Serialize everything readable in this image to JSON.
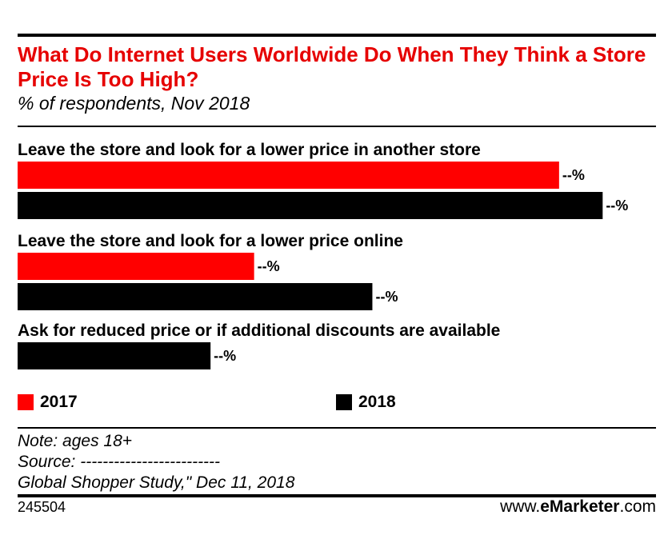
{
  "chart_data": {
    "type": "bar",
    "orientation": "horizontal",
    "title": "What Do Internet Users Worldwide Do When They Think a Store Price Is Too High?",
    "subtitle": "% of respondents, Nov 2018",
    "categories": [
      "Leave the store and look for a lower price in another store",
      "Leave the store and look for a lower price online",
      "Ask for reduced price or if additional discounts are available"
    ],
    "series": [
      {
        "name": "2017",
        "color": "#ff0000",
        "values": [
          87,
          38,
          null
        ],
        "labels": [
          "--%",
          "--%",
          ""
        ]
      },
      {
        "name": "2018",
        "color": "#000000",
        "values": [
          94,
          57,
          31
        ],
        "labels": [
          "--%",
          "--%",
          "--%"
        ]
      }
    ],
    "xlim": [
      0,
      100
    ],
    "legend_position": "bottom",
    "grid": false
  },
  "notes": {
    "note": "Note: ages 18+",
    "source": "Source: -------------------------",
    "source_detail": "Global Shopper Study,\" Dec 11, 2018"
  },
  "footer": {
    "chart_id": "245504",
    "brand_prefix": "www.",
    "brand_bold": "eMarketer",
    "brand_suffix": ".com"
  }
}
